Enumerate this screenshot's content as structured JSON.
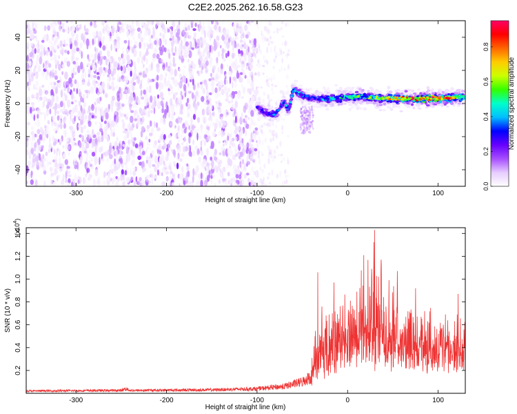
{
  "title": "C2E2.2025.262.16.58.G23",
  "chart_data": [
    {
      "type": "heatmap",
      "name": "spectrogram",
      "xlabel": "Height of straight line (km)",
      "ylabel": "Frequency (Hz)",
      "xlim": [
        -355,
        130
      ],
      "ylim": [
        -50,
        50
      ],
      "xticks": [
        -300,
        -200,
        -100,
        0,
        100
      ],
      "xtick_labels": [
        "-300",
        "-200",
        "-100",
        "0",
        "100"
      ],
      "yticks": [
        -40,
        -20,
        0,
        20,
        40
      ],
      "ytick_labels": [
        "-40",
        "-20",
        "0",
        "20",
        "40"
      ],
      "colorbar": {
        "label": "Normalized spectral amplitude",
        "range": [
          0.0,
          0.95
        ],
        "ticks": [
          0.0,
          0.2,
          0.4,
          0.6,
          0.8
        ],
        "tick_labels": [
          "0.0",
          "0.2",
          "0.4",
          "0.6",
          "0.8"
        ],
        "colormap": [
          "#ffffff",
          "#e6ccff",
          "#a64dff",
          "#6600ff",
          "#0000ff",
          "#00bfff",
          "#00ffcc",
          "#33ff00",
          "#ccff00",
          "#ffcc00",
          "#ff6600",
          "#ff0000",
          "#ff0066"
        ]
      },
      "features": {
        "noise_region": {
          "x_range": [
            -355,
            -100
          ],
          "freq_range": [
            -50,
            50
          ],
          "amplitude": 0.08
        },
        "fading_region": {
          "x_range": [
            -100,
            -65
          ],
          "amplitude": 0.04
        },
        "signal_track": {
          "x": [
            -100,
            -90,
            -80,
            -75,
            -70,
            -65,
            -60,
            -50,
            -40,
            -20,
            0,
            20,
            40,
            60,
            80,
            100,
            128
          ],
          "freq": [
            -2,
            -6,
            -7,
            -3,
            1,
            -4,
            8,
            5,
            3,
            3,
            4,
            4,
            3,
            3,
            3,
            3,
            4
          ],
          "amplitude": [
            0.25,
            0.3,
            0.35,
            0.3,
            0.4,
            0.3,
            0.4,
            0.35,
            0.3,
            0.4,
            0.45,
            0.5,
            0.6,
            0.7,
            0.8,
            0.75,
            0.6
          ]
        }
      }
    },
    {
      "type": "line",
      "name": "snr",
      "xlabel": "Height of straight line (km)",
      "ylabel": "SNR (10 * v/v)",
      "scale_label": "(x10",
      "scale_exponent": "4",
      "scale_close": ")",
      "xlim": [
        -355,
        130
      ],
      "ylim": [
        0,
        14500
      ],
      "xticks": [
        -300,
        -200,
        -100,
        0,
        100
      ],
      "xtick_labels": [
        "-300",
        "-200",
        "-100",
        "0",
        "100"
      ],
      "yticks": [
        2000,
        4000,
        6000,
        8000,
        10000,
        12000,
        14000
      ],
      "ytick_labels": [
        "0.2",
        "0.4",
        "0.6",
        "0.8",
        "1.0",
        "1.2",
        "1.4"
      ],
      "color": "#ee3333",
      "envelope": {
        "x": [
          -355,
          -250,
          -245,
          -240,
          -150,
          -100,
          -70,
          -60,
          -50,
          -40,
          -35,
          -30,
          -20,
          -10,
          0,
          10,
          20,
          30,
          40,
          50,
          60,
          70,
          80,
          90,
          100,
          110,
          120,
          130
        ],
        "median": [
          200,
          250,
          400,
          250,
          300,
          400,
          600,
          800,
          1000,
          1500,
          2500,
          3000,
          3200,
          3500,
          4000,
          4200,
          4300,
          4400,
          4500,
          4400,
          4300,
          4200,
          4000,
          3900,
          3800,
          3600,
          3500,
          3500
        ],
        "peak": [
          300,
          350,
          700,
          350,
          500,
          700,
          1100,
          1400,
          1600,
          3000,
          7000,
          8000,
          8500,
          9500,
          9000,
          11500,
          13000,
          14300,
          11000,
          10500,
          10000,
          9500,
          8800,
          8000,
          7500,
          7300,
          7300,
          7000
        ]
      },
      "spikes": [
        {
          "x": -33,
          "y": 10600
        },
        {
          "x": -15,
          "y": 9700
        },
        {
          "x": 18,
          "y": 12100
        },
        {
          "x": 30,
          "y": 14300
        },
        {
          "x": 37,
          "y": 11700
        },
        {
          "x": 55,
          "y": 10700
        },
        {
          "x": 75,
          "y": 9200
        },
        {
          "x": 122,
          "y": 8700
        }
      ]
    }
  ]
}
